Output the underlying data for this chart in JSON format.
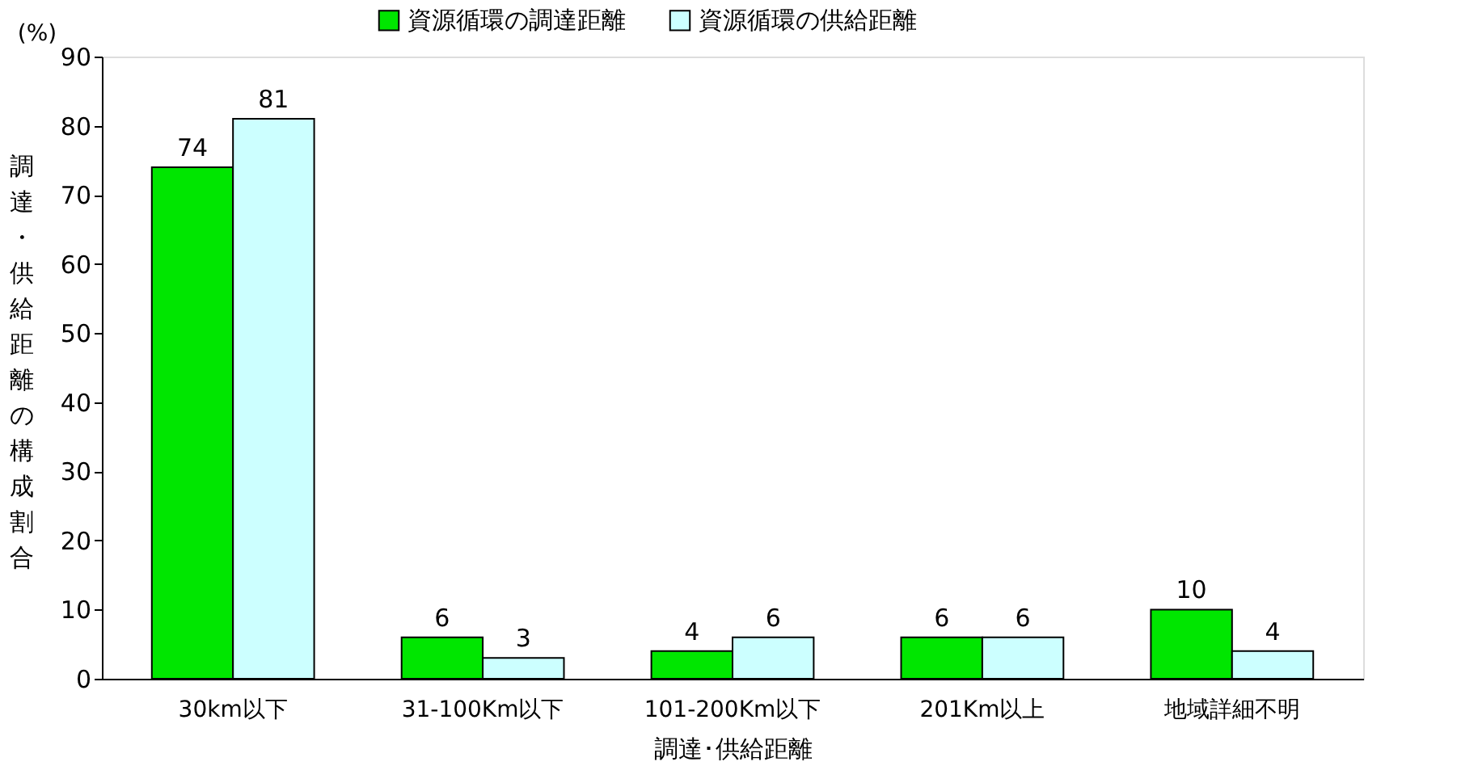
{
  "chart_data": {
    "type": "bar",
    "categories": [
      "30km以下",
      "31-100Km以下",
      "101-200Km以下",
      "201Km以上",
      "地域詳細不明"
    ],
    "series": [
      {
        "name": "資源循環の調達距離",
        "color": "#00e600",
        "values": [
          74,
          6,
          4,
          6,
          10
        ]
      },
      {
        "name": "資源循環の供給距離",
        "color": "#ccffff",
        "values": [
          81,
          3,
          6,
          6,
          4
        ]
      }
    ],
    "xlabel": "調達･供給距離",
    "ylabel": "調達・供給距離の構成割合",
    "annotations": [
      "(%)"
    ],
    "ylim": [
      0,
      90
    ],
    "yticks": [
      0,
      10,
      20,
      30,
      40,
      50,
      60,
      70,
      80,
      90
    ],
    "data_labels": true,
    "grid": false,
    "legend": "top"
  }
}
